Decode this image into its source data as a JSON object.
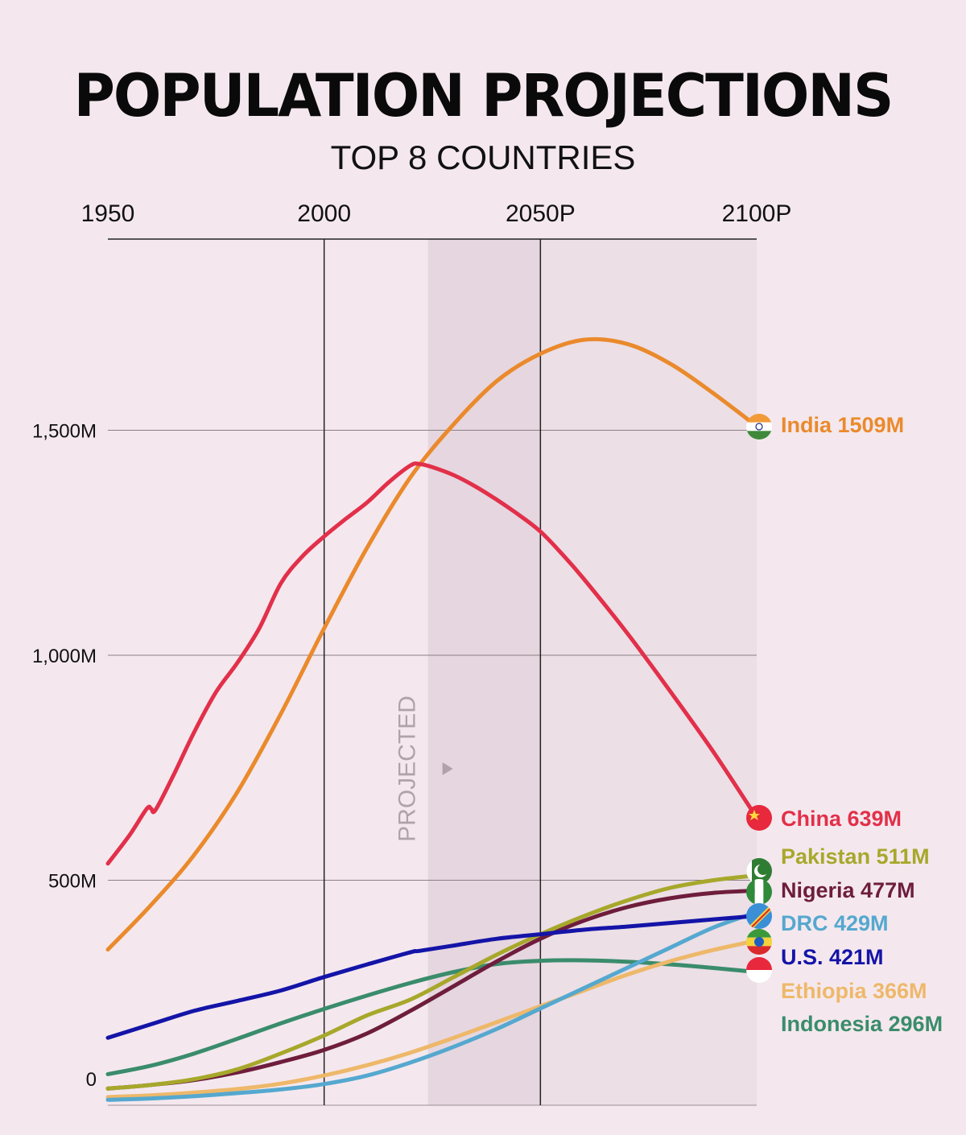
{
  "title": "POPULATION PROJECTIONS",
  "subtitle": "TOP 8 COUNTRIES",
  "projected_label": "PROJECTED",
  "colors": {
    "background": "#f4e8ee",
    "projected_band_dark": "#e6d6df",
    "projected_band_light": "#ecdfe6"
  },
  "chart_data": {
    "type": "line",
    "title": "POPULATION PROJECTIONS",
    "subtitle": "TOP 8 COUNTRIES",
    "x_ticks": [
      {
        "value": 1950,
        "label": "1950"
      },
      {
        "value": 2000,
        "label": "2000"
      },
      {
        "value": 2050,
        "label": "2050P"
      },
      {
        "value": 2100,
        "label": "2100P"
      }
    ],
    "y_ticks": [
      {
        "value": 0,
        "label": "0"
      },
      {
        "value": 500,
        "label": "500M"
      },
      {
        "value": 1000,
        "label": "1,000M"
      },
      {
        "value": 1500,
        "label": "1,500M"
      }
    ],
    "xlim": [
      1950,
      2100
    ],
    "ylim": [
      0,
      1900
    ],
    "projection_start": 2024,
    "legend_position": "right-end-labels",
    "series": [
      {
        "name": "India",
        "label": "India 1509M",
        "color": "#ea8a2c",
        "flag": "india-flag-icon",
        "x": [
          1950,
          1960,
          1970,
          1980,
          1990,
          2000,
          2010,
          2020,
          2030,
          2040,
          2050,
          2060,
          2070,
          2080,
          2090,
          2100
        ],
        "y": [
          346,
          445,
          557,
          697,
          870,
          1060,
          1240,
          1396,
          1514,
          1610,
          1670,
          1701,
          1692,
          1648,
          1582,
          1509
        ]
      },
      {
        "name": "China",
        "label": "China 639M",
        "color": "#e2304a",
        "flag": "china-flag-icon",
        "x": [
          1950,
          1955,
          1959,
          1960,
          1961,
          1965,
          1970,
          1975,
          1980,
          1985,
          1990,
          1995,
          2000,
          2005,
          2010,
          2015,
          2020,
          2022,
          2025,
          2030,
          2035,
          2040,
          2045,
          2050,
          2055,
          2060,
          2070,
          2080,
          2090,
          2100
        ],
        "y": [
          537,
          600,
          659,
          659,
          656,
          730,
          830,
          918,
          984,
          1060,
          1160,
          1220,
          1264,
          1303,
          1340,
          1385,
          1422,
          1425,
          1418,
          1400,
          1375,
          1345,
          1312,
          1275,
          1225,
          1170,
          1050,
          920,
          785,
          639
        ]
      },
      {
        "name": "Pakistan",
        "label": "Pakistan 511M",
        "color": "#a7a82b",
        "flag": "pakistan-flag-icon",
        "x": [
          1950,
          1960,
          1970,
          1980,
          1990,
          2000,
          2010,
          2020,
          2030,
          2040,
          2050,
          2060,
          2070,
          2080,
          2090,
          2100
        ],
        "y": [
          37,
          45,
          58,
          80,
          115,
          155,
          200,
          235,
          285,
          335,
          380,
          420,
          455,
          483,
          500,
          511
        ]
      },
      {
        "name": "Nigeria",
        "label": "Nigeria 477M",
        "color": "#6e1d3c",
        "flag": "nigeria-flag-icon",
        "x": [
          1950,
          1960,
          1970,
          1980,
          1990,
          2000,
          2010,
          2020,
          2030,
          2040,
          2050,
          2060,
          2070,
          2080,
          2090,
          2100
        ],
        "y": [
          37,
          45,
          56,
          73,
          96,
          123,
          160,
          210,
          265,
          320,
          370,
          410,
          440,
          460,
          472,
          477
        ]
      },
      {
        "name": "DRC",
        "label": "DRC 429M",
        "color": "#55a8cf",
        "flag": "drc-flag-icon",
        "x": [
          1950,
          1960,
          1970,
          1980,
          1990,
          2000,
          2010,
          2020,
          2030,
          2040,
          2050,
          2060,
          2070,
          2080,
          2090,
          2100
        ],
        "y": [
          12,
          15,
          20,
          27,
          35,
          47,
          66,
          95,
          130,
          170,
          215,
          260,
          305,
          350,
          395,
          429
        ]
      },
      {
        "name": "U.S.",
        "label": "U.S. 421M",
        "color": "#1414a8",
        "flag": "us-flag-icon",
        "x": [
          1950,
          1960,
          1970,
          1980,
          1990,
          2000,
          2010,
          2020,
          2022,
          2030,
          2040,
          2050,
          2060,
          2070,
          2080,
          2090,
          2100
        ],
        "y": [
          150,
          180,
          210,
          232,
          255,
          285,
          313,
          340,
          343,
          355,
          370,
          380,
          390,
          397,
          405,
          413,
          421
        ]
      },
      {
        "name": "Ethiopia",
        "label": "Ethiopia 366M",
        "color": "#eeb86a",
        "flag": "ethiopia-flag-icon",
        "x": [
          1950,
          1960,
          1970,
          1980,
          1990,
          2000,
          2010,
          2020,
          2030,
          2040,
          2050,
          2060,
          2070,
          2080,
          2090,
          2100
        ],
        "y": [
          18,
          22,
          28,
          36,
          48,
          66,
          89,
          117,
          150,
          185,
          220,
          255,
          290,
          320,
          345,
          366
        ]
      },
      {
        "name": "Indonesia",
        "label": "Indonesia 296M",
        "color": "#3a8c6c",
        "flag": "indonesia-flag-icon",
        "x": [
          1950,
          1960,
          1970,
          1980,
          1990,
          2000,
          2010,
          2020,
          2030,
          2040,
          2050,
          2060,
          2070,
          2080,
          2090,
          2100
        ],
        "y": [
          69,
          88,
          115,
          148,
          182,
          214,
          244,
          272,
          296,
          314,
          321,
          322,
          319,
          313,
          305,
          296
        ]
      }
    ]
  }
}
